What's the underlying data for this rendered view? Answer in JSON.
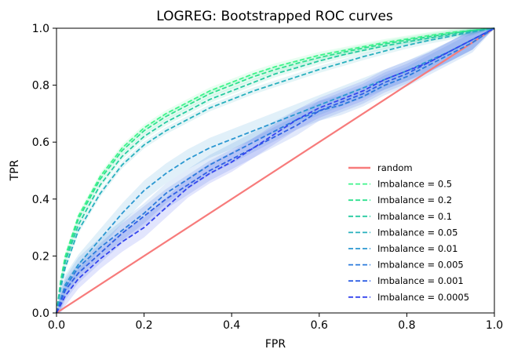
{
  "chart_data": {
    "type": "line",
    "title": "LOGREG: Bootstrapped ROC curves",
    "xlabel": "FPR",
    "ylabel": "TPR",
    "xlim": [
      0,
      1
    ],
    "ylim": [
      0,
      1
    ],
    "xticks": [
      "0.0",
      "0.2",
      "0.4",
      "0.6",
      "0.8",
      "1.0"
    ],
    "yticks": [
      "0.0",
      "0.2",
      "0.4",
      "0.6",
      "0.8",
      "1.0"
    ],
    "grid": false,
    "legend_position": "lower-right",
    "random": {
      "name": "random",
      "color": "#f77b7b",
      "x": [
        0,
        1
      ],
      "y": [
        0,
        1
      ]
    },
    "x": [
      0,
      0.01,
      0.02,
      0.05,
      0.1,
      0.15,
      0.2,
      0.25,
      0.3,
      0.35,
      0.4,
      0.45,
      0.5,
      0.55,
      0.6,
      0.65,
      0.7,
      0.75,
      0.8,
      0.85,
      0.9,
      0.95,
      1.0
    ],
    "series": [
      {
        "name": "Imbalance = 0.5",
        "color": "#3ef58a",
        "y": [
          0,
          0.12,
          0.2,
          0.34,
          0.48,
          0.58,
          0.65,
          0.7,
          0.74,
          0.78,
          0.81,
          0.84,
          0.865,
          0.885,
          0.905,
          0.92,
          0.935,
          0.95,
          0.962,
          0.974,
          0.985,
          0.993,
          1.0
        ]
      },
      {
        "name": "Imbalance = 0.2",
        "color": "#2fe08f",
        "y": [
          0,
          0.11,
          0.19,
          0.33,
          0.47,
          0.57,
          0.64,
          0.69,
          0.73,
          0.77,
          0.8,
          0.83,
          0.855,
          0.877,
          0.897,
          0.914,
          0.93,
          0.945,
          0.958,
          0.97,
          0.982,
          0.992,
          1.0
        ]
      },
      {
        "name": "Imbalance = 0.1",
        "color": "#26cba0",
        "y": [
          0,
          0.1,
          0.18,
          0.31,
          0.45,
          0.55,
          0.62,
          0.67,
          0.71,
          0.75,
          0.78,
          0.81,
          0.84,
          0.862,
          0.885,
          0.905,
          0.922,
          0.938,
          0.952,
          0.965,
          0.978,
          0.99,
          1.0
        ]
      },
      {
        "name": "Imbalance = 0.05",
        "color": "#27b0bd",
        "y": [
          0,
          0.09,
          0.16,
          0.29,
          0.42,
          0.52,
          0.59,
          0.64,
          0.68,
          0.72,
          0.75,
          0.78,
          0.805,
          0.83,
          0.855,
          0.877,
          0.9,
          0.92,
          0.94,
          0.957,
          0.972,
          0.987,
          1.0
        ]
      },
      {
        "name": "Imbalance = 0.01",
        "color": "#2a97d1",
        "y": [
          0,
          0.05,
          0.1,
          0.17,
          0.26,
          0.35,
          0.43,
          0.49,
          0.54,
          0.58,
          0.61,
          0.64,
          0.67,
          0.7,
          0.73,
          0.76,
          0.79,
          0.82,
          0.85,
          0.885,
          0.92,
          0.96,
          1.0
        ]
      },
      {
        "name": "Imbalance = 0.005",
        "color": "#2c7bdc",
        "y": [
          0,
          0.05,
          0.09,
          0.16,
          0.23,
          0.29,
          0.35,
          0.42,
          0.47,
          0.52,
          0.56,
          0.6,
          0.64,
          0.68,
          0.71,
          0.73,
          0.76,
          0.8,
          0.83,
          0.87,
          0.91,
          0.95,
          1.0
        ]
      },
      {
        "name": "Imbalance = 0.001",
        "color": "#2e5fe4",
        "y": [
          0,
          0.04,
          0.08,
          0.14,
          0.21,
          0.28,
          0.34,
          0.4,
          0.45,
          0.5,
          0.54,
          0.58,
          0.62,
          0.66,
          0.71,
          0.74,
          0.77,
          0.81,
          0.84,
          0.88,
          0.92,
          0.96,
          1.0
        ]
      },
      {
        "name": "Imbalance = 0.0005",
        "color": "#3444ee",
        "y": [
          0,
          0.03,
          0.06,
          0.12,
          0.19,
          0.25,
          0.3,
          0.37,
          0.44,
          0.49,
          0.53,
          0.58,
          0.63,
          0.68,
          0.72,
          0.75,
          0.78,
          0.82,
          0.85,
          0.88,
          0.92,
          0.96,
          1.0
        ]
      }
    ]
  }
}
